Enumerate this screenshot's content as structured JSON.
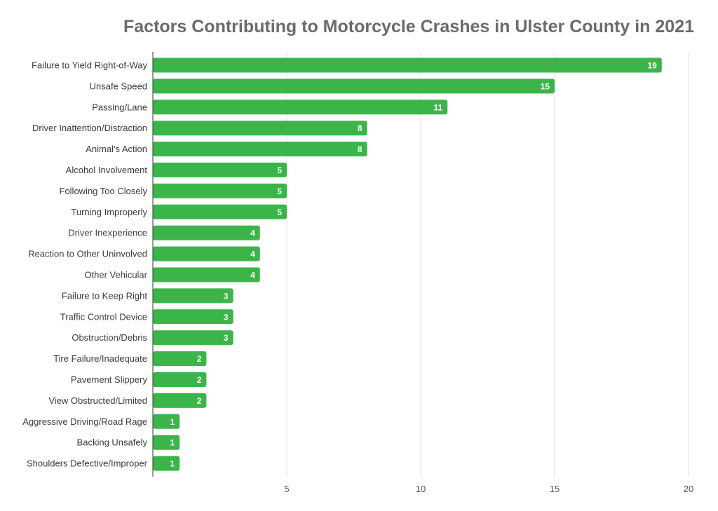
{
  "chart_data": {
    "type": "bar",
    "orientation": "horizontal",
    "title": "Factors Contributing to Motorcycle Crashes in Ulster County in 2021",
    "xlabel": "",
    "ylabel": "",
    "xlim": [
      0,
      20
    ],
    "x_ticks": [
      5,
      10,
      15,
      20
    ],
    "grid": true,
    "bar_color": "#3bb54a",
    "categories": [
      "Failure to Yield Right-of-Way",
      "Unsafe Speed",
      "Passing/Lane",
      "Driver Inattention/Distraction",
      "Animal's Action",
      "Alcohol Involvement",
      "Following Too Closely",
      "Turning Improperly",
      "Driver Inexperience",
      "Reaction to Other Uninvolved",
      "Other Vehicular",
      "Failure to Keep Right",
      "Traffic Control Device",
      "Obstruction/Debris",
      "Tire Failure/Inadequate",
      "Pavement Slippery",
      "View Obstructed/Limited",
      "Aggressive Driving/Road Rage",
      "Backing Unsafely",
      "Shoulders Defective/Improper"
    ],
    "values": [
      19,
      15,
      11,
      8,
      8,
      5,
      5,
      5,
      4,
      4,
      4,
      3,
      3,
      3,
      2,
      2,
      2,
      1,
      1,
      1
    ]
  }
}
